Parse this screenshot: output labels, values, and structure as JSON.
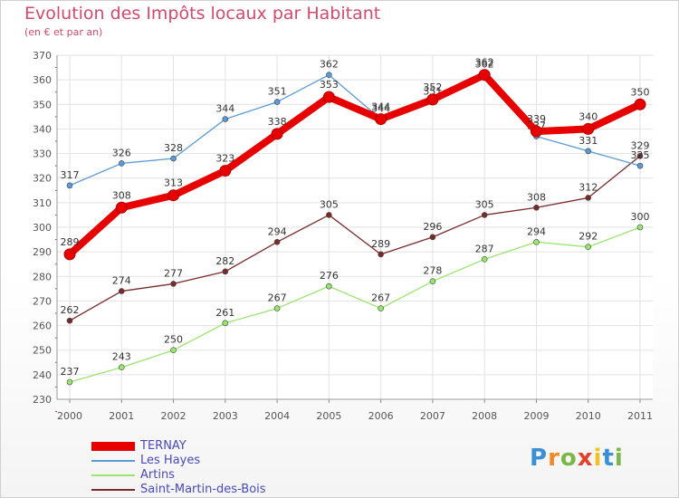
{
  "title": "Evolution des Impôts locaux par Habitant",
  "subtitle": "(en € et par an)",
  "logo": {
    "letters": [
      "P",
      "r",
      "o",
      "x",
      "i",
      "t",
      "i"
    ],
    "colors": [
      "#3a8fd6",
      "#f08a24",
      "#7ab648",
      "#e3402a",
      "#f5c024",
      "#3a8fd6",
      "#7ab648"
    ]
  },
  "chart_data": {
    "type": "line",
    "title": "Evolution des Impôts locaux par Habitant",
    "subtitle": "(en € et par an)",
    "xlabel": "",
    "ylabel": "",
    "grid": true,
    "legend_position": "bottom-left",
    "ylim": [
      230,
      370
    ],
    "yticks": [
      "230",
      "240",
      "250",
      "260",
      "270",
      "280",
      "290",
      "300",
      "310",
      "320",
      "330",
      "340",
      "350",
      "360",
      "370"
    ],
    "categories": [
      "2000",
      "2001",
      "2002",
      "2003",
      "2004",
      "2005",
      "2006",
      "2007",
      "2008",
      "2009",
      "2010",
      "2011"
    ],
    "series": [
      {
        "name": "TERNAY",
        "color": "#e60000",
        "values": [
          289,
          308,
          313,
          323,
          338,
          353,
          344,
          352,
          362,
          339,
          340,
          350
        ]
      },
      {
        "name": "Les Hayes",
        "color": "#5b9bd5",
        "values": [
          317,
          326,
          328,
          344,
          351,
          362,
          344,
          351,
          362,
          337,
          331,
          325
        ]
      },
      {
        "name": "Artins",
        "color": "#99e66e",
        "values": [
          237,
          243,
          250,
          261,
          267,
          276,
          267,
          278,
          287,
          294,
          292,
          300
        ]
      },
      {
        "name": "Saint-Martin-des-Bois",
        "color": "#7a2a2a",
        "values": [
          262,
          274,
          277,
          282,
          294,
          305,
          289,
          296,
          305,
          308,
          312,
          329
        ]
      }
    ]
  }
}
